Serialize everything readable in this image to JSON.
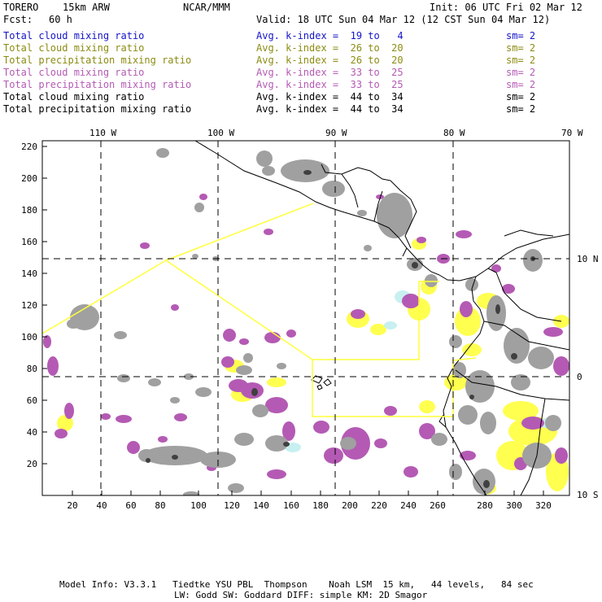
{
  "header": {
    "model": "TORERO",
    "resolution": "15km ARW",
    "center": "NCAR/MMM",
    "init": "Init: 06 UTC Fri 02 Mar 12",
    "fcst_label": "Fcst:",
    "fcst_value": "60 h",
    "valid": "Valid: 18 UTC Sun 04 Mar 12 (12 CST Sun 04 Mar 12)"
  },
  "legend": [
    {
      "field": "Total cloud mixing ratio",
      "index": "Avg. k-index =  19 to   4",
      "sm": "sm= 2",
      "color": "#1414c8"
    },
    {
      "field": "Total cloud mixing ratio",
      "index": "Avg. k-index =  26 to  20",
      "sm": "sm= 2",
      "color": "#8c8c14"
    },
    {
      "field": "Total precipitation mixing ratio",
      "index": "Avg. k-index =  26 to  20",
      "sm": "sm= 2",
      "color": "#8c8c14"
    },
    {
      "field": "Total cloud mixing ratio",
      "index": "Avg. k-index =  33 to  25",
      "sm": "sm= 2",
      "color": "#b45ab4"
    },
    {
      "field": "Total precipitation mixing ratio",
      "index": "Avg. k-index =  33 to  25",
      "sm": "sm= 2",
      "color": "#b45ab4"
    },
    {
      "field": "Total cloud mixing ratio",
      "index": "Avg. k-index =  44 to  34",
      "sm": "sm= 2",
      "color": "#000000"
    },
    {
      "field": "Total precipitation mixing ratio",
      "index": "Avg. k-index =  44 to  34",
      "sm": "sm= 2",
      "color": "#000000"
    }
  ],
  "axes": {
    "lon_labels": [
      "110 W",
      "100 W",
      "90 W",
      "80 W",
      "70 W"
    ],
    "lat_labels": [
      "10 N",
      "0",
      "10 S"
    ],
    "y_ticks": [
      "220",
      "200",
      "180",
      "160",
      "140",
      "120",
      "100",
      "80",
      "60",
      "40",
      "20"
    ],
    "x_ticks": [
      "20",
      "40",
      "60",
      "80",
      "100",
      "120",
      "140",
      "160",
      "180",
      "200",
      "220",
      "240",
      "260",
      "280",
      "300",
      "320"
    ]
  },
  "footer": {
    "line1": "Model Info: V3.3.1   Tiedtke YSU PBL  Thompson    Noah LSM  15 km,   44 levels,   84 sec",
    "line2": "LW: Godd SW: Goddard DIFF: simple KM: 2D Smagor"
  },
  "colors": {
    "gray": "#a0a0a0",
    "dark": "#404040",
    "purple": "#b45ab4",
    "yellow": "#ffff50",
    "cyan": "#c8f0f0",
    "coast": "#000000",
    "domain_line": "#ffff3c"
  }
}
